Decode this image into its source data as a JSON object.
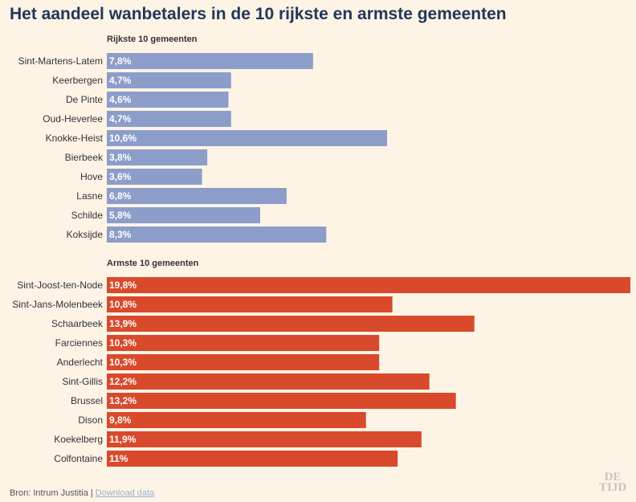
{
  "title": "Het aandeel wanbetalers in de 10 rijkste en armste gemeenten",
  "colors": {
    "rich": "#8c9dca",
    "poor": "#d9492b",
    "background": "#fdf4e6",
    "title": "#23365a"
  },
  "footer": {
    "source": "Bron: Intrum Justitia | ",
    "download_link": "Download data"
  },
  "logo": {
    "line1": "DE",
    "line2": "TIJD"
  },
  "chart_data": [
    {
      "type": "bar",
      "orientation": "horizontal",
      "title": "Rijkste 10 gemeenten",
      "categories": [
        "Sint-Martens-Latem",
        "Keerbergen",
        "De Pinte",
        "Oud-Heverlee",
        "Knokke-Heist",
        "Bierbeek",
        "Hove",
        "Lasne",
        "Schilde",
        "Koksijde"
      ],
      "values": [
        7.8,
        4.7,
        4.6,
        4.7,
        10.6,
        3.8,
        3.6,
        6.8,
        5.8,
        8.3
      ],
      "labels": [
        "7,8%",
        "4,7%",
        "4,6%",
        "4,7%",
        "10,6%",
        "3,8%",
        "3,6%",
        "6,8%",
        "5,8%",
        "8,3%"
      ],
      "color": "#8c9dca",
      "xlim": [
        0,
        19.8
      ]
    },
    {
      "type": "bar",
      "orientation": "horizontal",
      "title": "Armste 10 gemeenten",
      "categories": [
        "Sint-Joost-ten-Node",
        "Sint-Jans-Molenbeek",
        "Schaarbeek",
        "Farciennes",
        "Anderlecht",
        "Sint-Gillis",
        "Brussel",
        "Dison",
        "Koekelberg",
        "Colfontaine"
      ],
      "values": [
        19.8,
        10.8,
        13.9,
        10.3,
        10.3,
        12.2,
        13.2,
        9.8,
        11.9,
        11
      ],
      "labels": [
        "19,8%",
        "10,8%",
        "13,9%",
        "10,3%",
        "10,3%",
        "12,2%",
        "13,2%",
        "9,8%",
        "11,9%",
        "11%"
      ],
      "color": "#d9492b",
      "xlim": [
        0,
        19.8
      ]
    }
  ]
}
